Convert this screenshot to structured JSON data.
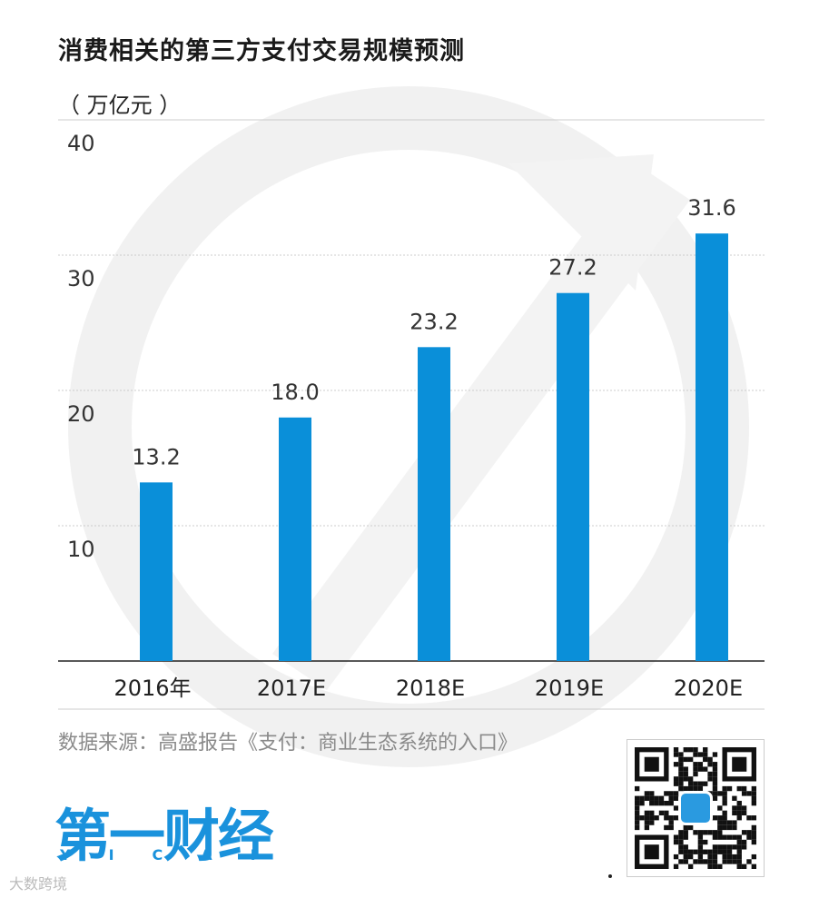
{
  "title": "消费相关的第三方支付交易规模预测",
  "unit_label": "（ 万亿元 ）",
  "source": "数据来源：高盛报告《支付：商业生态系统的入口》",
  "brand": {
    "logo_text": "第一财经",
    "logo_sub": "YICAI",
    "color": "#1a92dc"
  },
  "watermark": "大数跨境",
  "colors": {
    "bar": "#0a8fd9",
    "grid": "#cccccc",
    "watermark_ring": "#f0f0f0"
  },
  "chart_data": {
    "type": "bar",
    "categories": [
      "2016年",
      "2017E",
      "2018E",
      "2019E",
      "2020E"
    ],
    "values": [
      13.2,
      18.0,
      23.2,
      27.2,
      31.6
    ],
    "value_labels": [
      "13.2",
      "18.0",
      "23.2",
      "27.2",
      "31.6"
    ],
    "title": "消费相关的第三方支付交易规模预测",
    "ylabel": "（ 万亿元 ）",
    "ylim": [
      0,
      40
    ],
    "yticks": [
      10,
      20,
      30,
      40
    ],
    "grid": true
  }
}
